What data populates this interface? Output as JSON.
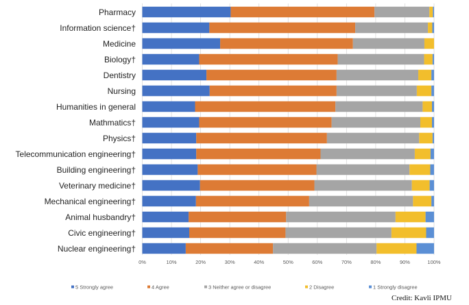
{
  "chart_data": {
    "type": "bar",
    "orientation": "horizontal",
    "stacked": "percent",
    "title": "",
    "xlabel": "",
    "ylabel": "",
    "xlim": [
      0,
      100
    ],
    "x_ticks": [
      "0%",
      "10%",
      "20%",
      "30%",
      "40%",
      "50%",
      "60%",
      "70%",
      "80%",
      "90%",
      "100%"
    ],
    "grid": true,
    "legend_position": "bottom",
    "categories": [
      "Pharmacy",
      "Information science†",
      "Medicine",
      "Biology†",
      "Dentistry",
      "Nursing",
      "Humanities in general",
      "Mathmatics†",
      "Physics†",
      "Telecommunication engineering†",
      "Building engineering†",
      "Veterinary medicine†",
      "Mechanical engineering†",
      "Animal husbandry†",
      "Civic engineering†",
      "Nuclear engineering†"
    ],
    "series": [
      {
        "name": "5 Strongly agree",
        "color": "#4472C4",
        "values": [
          30.3,
          23.0,
          26.7,
          19.5,
          22.0,
          23.1,
          18.1,
          19.5,
          18.5,
          18.5,
          19.0,
          19.8,
          18.4,
          15.9,
          16.1,
          14.9
        ]
      },
      {
        "name": "4 Agree",
        "color": "#DD7B35",
        "values": [
          49.3,
          50.0,
          45.5,
          47.5,
          44.6,
          43.5,
          48.1,
          45.4,
          44.8,
          42.6,
          40.7,
          39.2,
          38.8,
          33.4,
          33.0,
          29.9
        ]
      },
      {
        "name": "3 Neither agree or disagree",
        "color": "#A5A5A5",
        "values": [
          18.8,
          24.9,
          24.5,
          29.6,
          28.0,
          27.5,
          29.9,
          30.4,
          31.6,
          32.3,
          31.9,
          33.4,
          35.6,
          37.5,
          36.3,
          35.5
        ]
      },
      {
        "name": "2 Disagree",
        "color": "#F2BE2C",
        "values": [
          1.2,
          1.5,
          3.3,
          2.9,
          4.5,
          5.0,
          3.2,
          4.0,
          4.6,
          5.4,
          7.1,
          6.1,
          6.3,
          10.3,
          11.9,
          13.7
        ]
      },
      {
        "name": "1 Strongly disagree",
        "color": "#5B8FD5",
        "values": [
          0.4,
          0.6,
          0.0,
          0.5,
          0.9,
          0.9,
          0.7,
          0.7,
          0.5,
          1.2,
          1.3,
          1.5,
          0.9,
          2.9,
          2.7,
          6.0
        ]
      }
    ]
  },
  "credit": "Credit: Kavli IPMU"
}
